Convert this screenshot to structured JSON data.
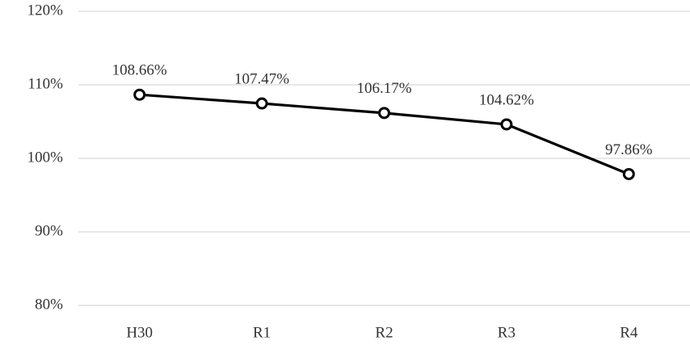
{
  "chart_data": {
    "type": "line",
    "categories": [
      "H30",
      "R1",
      "R2",
      "R3",
      "R4"
    ],
    "series": [
      {
        "color": "#000000",
        "values": [
          108.66,
          107.47,
          106.17,
          104.62,
          97.86
        ],
        "value_labels": [
          "108.66%",
          "107.47%",
          "106.17%",
          "104.62%",
          "97.86%"
        ]
      }
    ],
    "ylim": [
      80,
      120
    ],
    "yticks": [
      {
        "value": 80,
        "label": "80%"
      },
      {
        "value": 90,
        "label": "90%"
      },
      {
        "value": 100,
        "label": "100%"
      },
      {
        "value": 110,
        "label": "110%"
      },
      {
        "value": 120,
        "label": "120%"
      }
    ],
    "grid": true
  }
}
